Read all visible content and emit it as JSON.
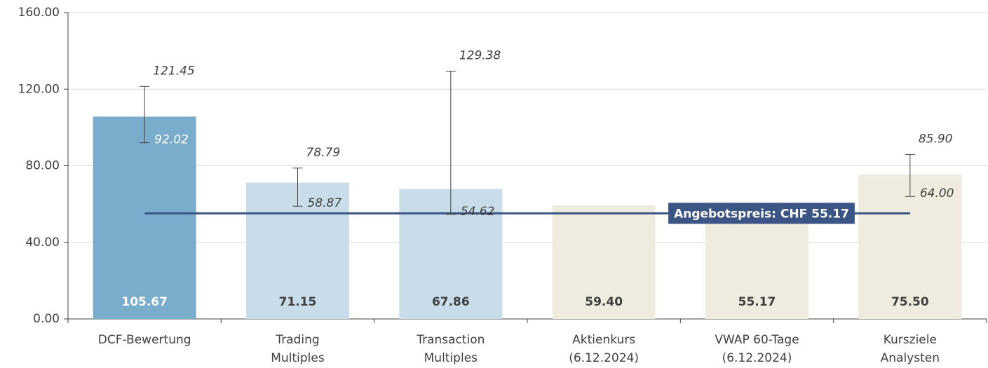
{
  "chart_data": {
    "type": "bar",
    "categories": [
      [
        "DCF-Bewertung"
      ],
      [
        "Trading",
        "Multiples"
      ],
      [
        "Transaction",
        "Multiples"
      ],
      [
        "Aktienkurs",
        "(6.12.2024)"
      ],
      [
        "VWAP 60-Tage",
        "(6.12.2024)"
      ],
      [
        "Kursziele",
        "Analysten"
      ]
    ],
    "values": [
      105.67,
      71.15,
      67.86,
      59.4,
      55.17,
      75.5
    ],
    "value_labels": [
      "105.67",
      "71.15",
      "67.86",
      "59.40",
      "55.17",
      "75.50"
    ],
    "colors": [
      "#79adcb",
      "#c9dcea",
      "#c9dcea",
      "#efebdf",
      "#efebdf",
      "#efebdf"
    ],
    "value_label_colors": [
      "#ffffff",
      "#404040",
      "#404040",
      "#404040",
      "#404040",
      "#404040"
    ],
    "error_low": [
      92.02,
      58.87,
      54.62,
      null,
      null,
      64
    ],
    "error_low_labels": [
      "92.02",
      "58.87",
      "54.62",
      null,
      null,
      "64.00"
    ],
    "error_high": [
      121.45,
      78.79,
      129.38,
      null,
      null,
      85.9
    ],
    "error_high_labels": [
      "121.45",
      "78.79",
      "129.38",
      null,
      null,
      "85.90"
    ],
    "reference": {
      "value": 55.17,
      "label": "Angebotspreis: CHF 55.17",
      "color": "#3b5585"
    },
    "ylim": [
      0,
      160
    ],
    "yticks": [
      {
        "value": 0,
        "label": "0.00"
      },
      {
        "value": 40,
        "label": "40.00"
      },
      {
        "value": 80,
        "label": "80.00"
      },
      {
        "value": 120,
        "label": "120.00"
      },
      {
        "value": 160,
        "label": "160.00"
      }
    ],
    "grid": true
  }
}
